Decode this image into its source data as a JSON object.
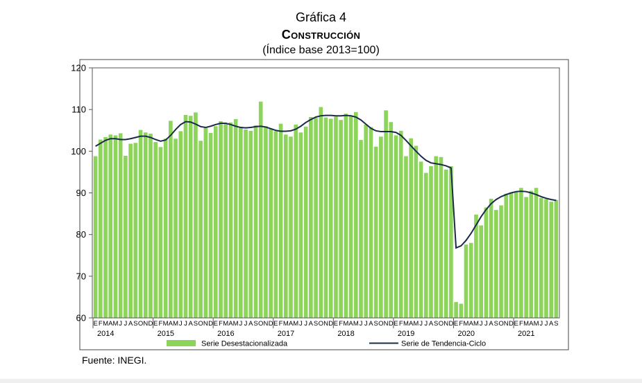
{
  "header": {
    "figure_number": "Gráfica 4",
    "title": "Construcción",
    "subtitle": "(Índice base 2013=100)"
  },
  "source_note": "Fuente: INEGI.",
  "colors": {
    "bar": "#8cd45a",
    "line": "#1a2b4a",
    "plot_border": "#555555",
    "frame_border": "#444444"
  },
  "chart_data": {
    "type": "bar",
    "title": "Construcción",
    "subtitle": "(Índice base 2013=100)",
    "ylim": [
      60,
      120
    ],
    "yticks": [
      60,
      70,
      80,
      90,
      100,
      110,
      120
    ],
    "month_letters": [
      "E",
      "F",
      "M",
      "A",
      "M",
      "J",
      "J",
      "A",
      "S",
      "O",
      "N",
      "D"
    ],
    "years": [
      "2014",
      "2015",
      "2016",
      "2017",
      "2018",
      "2019",
      "2020",
      "2021"
    ],
    "grid": false,
    "legend_position": "bottom",
    "series": [
      {
        "name": "Serie Desestacionalizada",
        "type": "bar",
        "values": [
          98.8,
          102.8,
          103.4,
          104.0,
          103.8,
          104.3,
          98.9,
          101.8,
          102.0,
          105.1,
          104.5,
          104.2,
          102.2,
          101.0,
          103.0,
          107.3,
          103.0,
          104.8,
          108.7,
          108.5,
          109.3,
          102.5,
          105.6,
          104.4,
          106.0,
          107.2,
          106.6,
          106.9,
          107.7,
          105.7,
          105.2,
          104.9,
          106.2,
          111.9,
          106.0,
          105.4,
          104.8,
          106.6,
          104.0,
          103.5,
          106.4,
          104.5,
          105.9,
          108.2,
          108.0,
          110.6,
          108.1,
          107.8,
          108.3,
          107.5,
          109.0,
          108.6,
          109.4,
          102.7,
          106.4,
          105.8,
          101.1,
          103.5,
          109.8,
          107.0,
          103.8,
          104.9,
          98.8,
          103.1,
          101.3,
          97.5,
          94.8,
          96.4,
          98.8,
          98.6,
          95.6,
          96.4,
          63.8,
          63.4,
          77.6,
          78.0,
          84.8,
          82.2,
          86.5,
          88.6,
          85.9,
          87.0,
          89.8,
          90.1,
          90.2,
          91.2,
          89.0,
          90.5,
          91.2,
          88.8,
          88.5,
          87.9,
          88.3
        ]
      },
      {
        "name": "Serie de Tendencia-Ciclo",
        "type": "line",
        "values": [
          101.2,
          101.9,
          102.6,
          103.0,
          103.0,
          102.8,
          102.8,
          103.0,
          103.3,
          103.6,
          103.6,
          103.3,
          102.8,
          102.4,
          102.7,
          103.8,
          105.2,
          106.4,
          107.1,
          107.0,
          106.5,
          105.9,
          105.7,
          106.0,
          106.4,
          106.7,
          106.7,
          106.4,
          106.0,
          105.7,
          105.6,
          105.7,
          105.9,
          106.0,
          105.8,
          105.4,
          105.0,
          104.8,
          104.8,
          104.9,
          105.3,
          106.0,
          106.9,
          107.6,
          108.2,
          108.5,
          108.6,
          108.6,
          108.5,
          108.5,
          108.6,
          108.5,
          108.2,
          107.5,
          106.5,
          105.5,
          104.9,
          104.7,
          104.7,
          104.7,
          104.5,
          103.8,
          102.6,
          101.3,
          100.0,
          98.8,
          97.8,
          97.2,
          97.0,
          96.8,
          96.5,
          96.0,
          76.8,
          77.3,
          78.6,
          80.3,
          82.3,
          84.3,
          86.0,
          87.4,
          88.4,
          89.1,
          89.6,
          90.0,
          90.3,
          90.4,
          90.3,
          90.0,
          89.6,
          89.1,
          88.7,
          88.4,
          88.2
        ]
      }
    ]
  }
}
